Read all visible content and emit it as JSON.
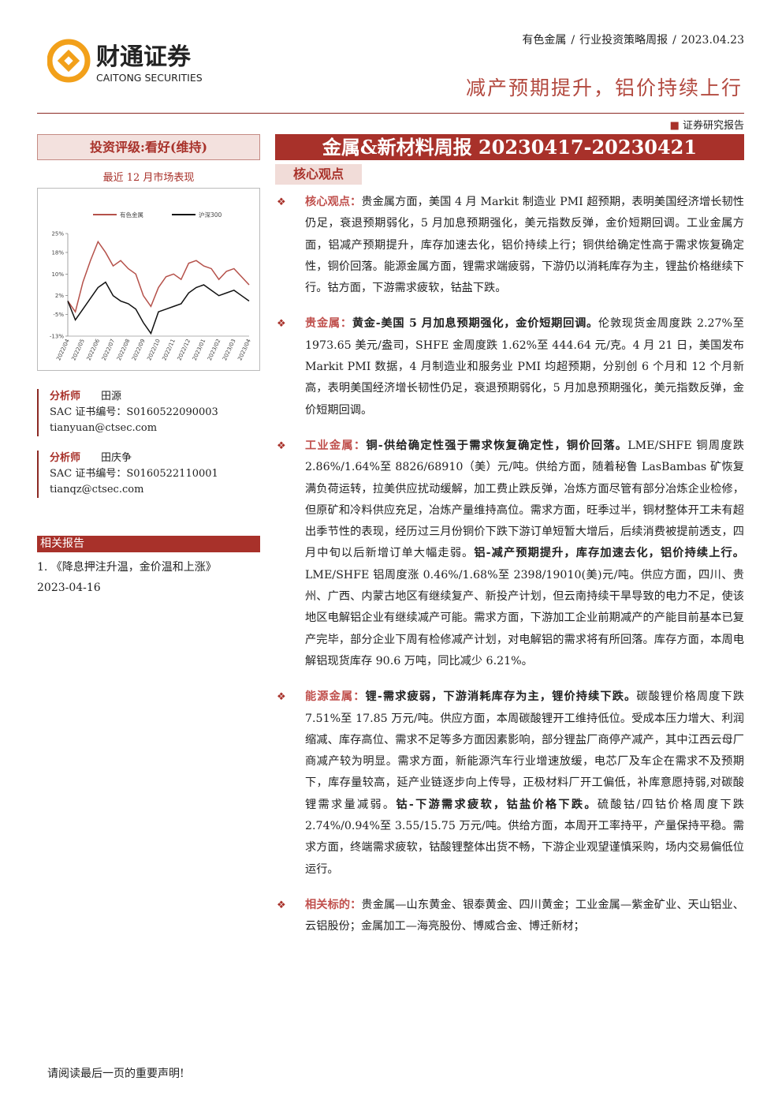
{
  "header": {
    "logo_cn": "财通证券",
    "logo_en": "CAITONG SECURITIES",
    "breadcrumb": [
      "有色金属",
      "行业投资策略周报",
      "2023.04.23"
    ],
    "headline": "减产预期提升，铝价持续上行",
    "report_type": "证券研究报告"
  },
  "sidebar": {
    "rating": "投资评级:看好(维持)",
    "chart_caption": "最近 12 月市场表现",
    "analysts": [
      {
        "role": "分析师",
        "name": "田源",
        "sac": "SAC 证书编号：S0160522090003",
        "email": "tianyuan@ctsec.com"
      },
      {
        "role": "分析师",
        "name": "田庆争",
        "sac": "SAC 证书编号：S0160522110001",
        "email": "tianqz@ctsec.com"
      }
    ],
    "related_title": "相关报告",
    "related": [
      {
        "text": "1. 《降息押注升温，金价温和上涨》",
        "date": "2023-04-16"
      }
    ]
  },
  "chart_data": {
    "type": "line",
    "categories": [
      "2022/04",
      null,
      "2022/05",
      null,
      "2022/06",
      null,
      "2022/07",
      null,
      "2022/08",
      null,
      "2022/09",
      null,
      "2022/10",
      null,
      "2022/11",
      null,
      "2022/12",
      null,
      "2023/01",
      null,
      "2023/02",
      null,
      "2023/03",
      null,
      "2023/04"
    ],
    "series": [
      {
        "name": "有色金属",
        "color": "#b5514a",
        "values": [
          0,
          -4,
          7,
          15,
          22,
          18,
          13,
          15,
          12,
          10,
          2,
          -2,
          5,
          9,
          10,
          8,
          14,
          15,
          13,
          12,
          8,
          11,
          12,
          9,
          6
        ]
      },
      {
        "name": "沪深300",
        "color": "#111111",
        "values": [
          0,
          -7,
          -3,
          1,
          5,
          7,
          2,
          0,
          -1,
          -3,
          -8,
          -12,
          -4,
          -3,
          -2,
          -1,
          3,
          5,
          6,
          4,
          2,
          3,
          4,
          2,
          0
        ]
      }
    ],
    "ylim": [
      -13,
      25
    ],
    "yticks": [
      {
        "value": 25,
        "label": "25%"
      },
      {
        "value": 18,
        "label": "18%"
      },
      {
        "value": 10,
        "label": "10%"
      },
      {
        "value": 2,
        "label": "2%"
      },
      {
        "value": -5,
        "label": "-5%"
      },
      {
        "value": -13,
        "label": "-13%"
      }
    ]
  },
  "main": {
    "title": "金属&新材料周报 20230417-20230421",
    "section": "核心观点",
    "bullets": [
      {
        "label": "核心观点：",
        "runs": [
          {
            "t": "贵金属方面，美国 4 月 Markit 制造业 PMI 超预期，表明美国经济增长韧性仍足，衰退预期弱化，5 月加息预期强化，美元指数反弹，金价短期回调。工业金属方面，铝减产预期提升，库存加速去化，铝价持续上行；铜供给确定性高于需求恢复确定性，铜价回落。能源金属方面，锂需求端疲弱，下游仍以消耗库存为主，锂盐价格继续下行。钴方面，下游需求疲软，钴盐下跌。",
            "bold": false
          }
        ]
      },
      {
        "label": "贵金属：",
        "runs": [
          {
            "t": "黄金-美国 5 月加息预期强化，金价短期回调。",
            "bold": true
          },
          {
            "t": "伦敦现货金周度跌 2.27%至 1973.65 美元/盎司，SHFE 金周度跌 1.62%至 444.64 元/克。4 月 21 日，美国发布 Markit PMI 数据，4 月制造业和服务业 PMI 均超预期，分别创 6 个月和 12 个月新高，表明美国经济增长韧性仍足，衰退预期弱化，5 月加息预期强化，美元指数反弹，金价短期回调。",
            "bold": false
          }
        ]
      },
      {
        "label": "工业金属：",
        "runs": [
          {
            "t": "铜-供给确定性强于需求恢复确定性，铜价回落。",
            "bold": true
          },
          {
            "t": "LME/SHFE 铜周度跌 2.86%/1.64%至 8826/68910（美）元/吨。供给方面，随着秘鲁 LasBambas 矿恢复满负荷运转，拉美供应扰动缓解，加工费止跌反弹，冶炼方面尽管有部分冶炼企业检修，但原矿和冷料供应充足，冶炼产量维持高位。需求方面，旺季过半，铜材整体开工未有超出季节性的表现，经历过三月份铜价下跌下游订单短暂大增后，后续消费被提前透支，四月中旬以后新增订单大幅走弱。",
            "bold": false
          },
          {
            "t": "铝-减产预期提升，库存加速去化，铝价持续上行。",
            "bold": true
          },
          {
            "t": "LME/SHFE 铝周度涨 0.46%/1.68%至 2398/19010(美)元/吨。供应方面，四川、贵州、广西、内蒙古地区有继续复产、新投产计划，但云南持续干旱导致的电力不足，使该地区电解铝企业有继续减产可能。需求方面，下游加工企业前期减产的产能目前基本已复产完毕，部分企业下周有检修减产计划，对电解铝的需求将有所回落。库存方面，本周电解铝现货库存 90.6 万吨，同比减少 6.21%。",
            "bold": false
          }
        ]
      },
      {
        "label": "能源金属：",
        "runs": [
          {
            "t": "锂-需求疲弱，下游消耗库存为主，锂价持续下跌。",
            "bold": true
          },
          {
            "t": "碳酸锂价格周度下跌 7.51%至 17.85 万元/吨。供应方面，本周碳酸锂开工维持低位。受成本压力增大、利润缩减、库存高位、需求不足等多方面因素影响，部分锂盐厂商停产减产，其中江西云母厂商减产较为明显。需求方面，新能源汽车行业增速放缓，电芯厂及车企在需求不及预期下，库存量较高，延产业链逐步向上传导，正极材料厂开工偏低，补库意愿持弱,对碳酸锂需求量减弱。",
            "bold": false
          },
          {
            "t": "钴-下游需求疲软，钴盐价格下跌。",
            "bold": true
          },
          {
            "t": "硫酸钴/四钴价格周度下跌 2.74%/0.94%至 3.55/15.75 万元/吨。供给方面，本周开工率持平，产量保持平稳。需求方面，终端需求疲软，钴酸锂整体出货不畅，下游企业观望谨慎采购，场内交易偏低位运行。",
            "bold": false
          }
        ]
      },
      {
        "label": "相关标的：",
        "runs": [
          {
            "t": "贵金属—山东黄金、银泰黄金、四川黄金；工业金属—紫金矿业、天山铝业、云铝股份；金属加工—海亮股份、博威合金、博迁新材；",
            "bold": false
          }
        ]
      }
    ]
  },
  "footer": "请阅读最后一页的重要声明!"
}
